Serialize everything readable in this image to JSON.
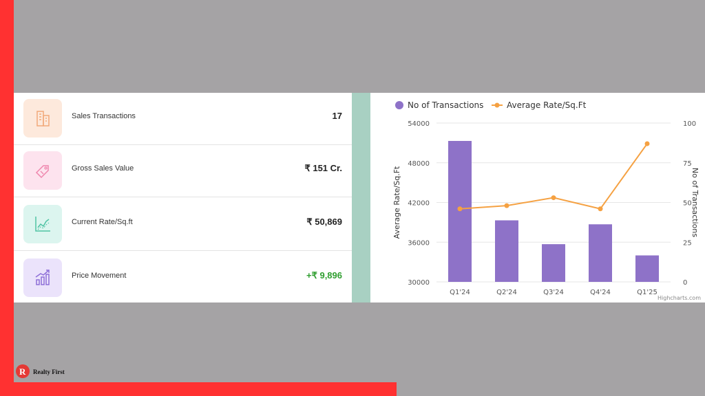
{
  "brand": {
    "logo_text": "Realty First"
  },
  "stats": [
    {
      "label": "Sales Transactions",
      "value": "17",
      "icon": "building-icon"
    },
    {
      "label": "Gross Sales Value",
      "value": "₹ 151 Cr.",
      "icon": "price-tag-icon"
    },
    {
      "label": "Current Rate/Sq.ft",
      "value": "₹ 50,869",
      "icon": "line-chart-icon"
    },
    {
      "label": "Price Movement",
      "value": "+₹ 9,896",
      "icon": "growth-bars-icon"
    }
  ],
  "chart_data": {
    "type": "bar",
    "categories": [
      "Q1'24",
      "Q2'24",
      "Q3'24",
      "Q4'24",
      "Q1'25"
    ],
    "series": [
      {
        "name": "No of Transactions",
        "type": "bar",
        "axis": "left",
        "values": [
          51300,
          39300,
          35700,
          38700,
          34000
        ],
        "color": "#8e72c8"
      },
      {
        "name": "Average Rate/Sq.Ft",
        "type": "line",
        "axis": "right",
        "values": [
          46,
          48,
          53,
          46,
          87
        ],
        "color": "#f5a142"
      }
    ],
    "left_axis": {
      "label": "Average Rate/Sq.Ft",
      "ticks": [
        "54000",
        "48000",
        "42000",
        "36000",
        "30000"
      ],
      "range": [
        30000,
        54000
      ]
    },
    "right_axis": {
      "label": "No of Transactions",
      "ticks": [
        "100",
        "75",
        "50",
        "25",
        "0"
      ],
      "range": [
        0,
        100
      ]
    },
    "legend": "top-left",
    "grid": true,
    "credit": "Highcharts.com"
  }
}
